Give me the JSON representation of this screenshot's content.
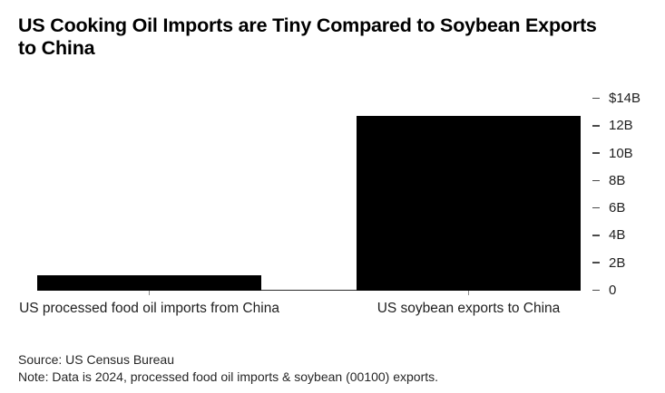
{
  "title": {
    "text": "US Cooking Oil Imports are Tiny Compared to Soybean Exports to China",
    "lines": [
      "US Cooking Oil Imports are Tiny Compared to Soybean Exports",
      "to China"
    ]
  },
  "footer": {
    "source": "Source: US Census Bureau",
    "note": "Note: Data is 2024, processed food oil imports & soybean (00100) exports."
  },
  "chart_data": {
    "type": "bar",
    "title": "US Cooking Oil Imports are Tiny Compared to Soybean Exports to China",
    "categories": [
      "US processed food oil imports from China",
      "US soybean exports to China"
    ],
    "values": [
      1.1,
      12.7
    ],
    "unit": "billion USD",
    "xlabel": "",
    "ylabel": "",
    "ylim": [
      0,
      14
    ],
    "yticks": [
      {
        "value": 14,
        "label": "$14B"
      },
      {
        "value": 12,
        "label": "12B"
      },
      {
        "value": 10,
        "label": "10B"
      },
      {
        "value": 8,
        "label": "8B"
      },
      {
        "value": 6,
        "label": "6B"
      },
      {
        "value": 4,
        "label": "4B"
      },
      {
        "value": 2,
        "label": "2B"
      },
      {
        "value": 0,
        "label": "0"
      }
    ],
    "value_axis_side": "right",
    "grid": false,
    "legend": "none",
    "bar_color": "#000000",
    "axis_line_color": "#2b2b2b",
    "y_tick_color": "#4a4a4a",
    "x_tick_color": "#8c8c8c",
    "background_color": "#ffffff"
  }
}
